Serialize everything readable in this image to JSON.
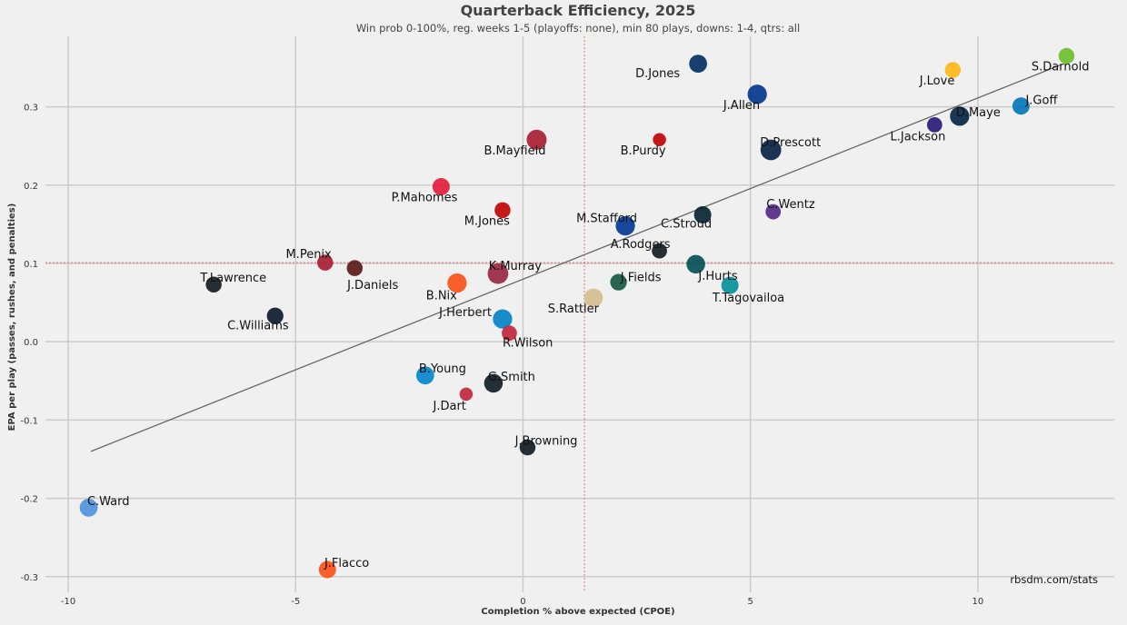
{
  "chart_data": {
    "type": "scatter",
    "title": "Quarterback Efficiency, 2025",
    "subtitle": "Win prob 0-100%, reg. weeks 1-5 (playoffs: none), min 80 plays, downs: 1-4, qtrs: all",
    "xlabel": "Completion % above expected (CPOE)",
    "ylabel": "EPA per play (passes, rushes, and penalties)",
    "credit": "rbsdm.com/stats",
    "xlim": [
      -10.5,
      13
    ],
    "ylim": [
      -0.32,
      0.39
    ],
    "xticks": [
      -10,
      -5,
      0,
      5,
      10
    ],
    "xtick_labels": [
      "-10",
      "-5",
      "0",
      "5",
      "10"
    ],
    "yticks": [
      -0.3,
      -0.2,
      -0.1,
      0.0,
      0.1,
      0.2,
      0.3
    ],
    "ytick_labels": [
      "-0.3",
      "-0.2",
      "-0.1",
      "0.0",
      "0.1",
      "0.2",
      "0.3"
    ],
    "grid": true,
    "mean_x": 1.35,
    "mean_y": 0.101,
    "trend_line": {
      "x": [
        -9.5,
        11.8
      ],
      "y": [
        -0.14,
        0.353
      ]
    },
    "points": [
      {
        "name": "S.Darnold",
        "x": 11.95,
        "y": 0.365,
        "size": 0.5,
        "color": "#69be28"
      },
      {
        "name": "J.Love",
        "x": 9.45,
        "y": 0.347,
        "size": 0.5,
        "color": "#ffb612"
      },
      {
        "name": "J.Goff",
        "x": 10.95,
        "y": 0.301,
        "size": 0.6,
        "color": "#0076b6"
      },
      {
        "name": "D.Maye",
        "x": 9.6,
        "y": 0.288,
        "size": 0.75,
        "color": "#002244"
      },
      {
        "name": "L.Jackson",
        "x": 9.05,
        "y": 0.277,
        "size": 0.45,
        "color": "#241773"
      },
      {
        "name": "D.Jones",
        "x": 3.85,
        "y": 0.355,
        "size": 0.65,
        "color": "#002c5f"
      },
      {
        "name": "J.Allen",
        "x": 5.15,
        "y": 0.316,
        "size": 0.75,
        "color": "#00338d"
      },
      {
        "name": "D.Prescott",
        "x": 5.45,
        "y": 0.245,
        "size": 0.85,
        "color": "#041e42"
      },
      {
        "name": "B.Purdy",
        "x": 3.0,
        "y": 0.258,
        "size": 0.3,
        "color": "#c00000"
      },
      {
        "name": "B.Mayfield",
        "x": 0.3,
        "y": 0.258,
        "size": 0.8,
        "color": "#a71930"
      },
      {
        "name": "P.Mahomes",
        "x": -1.8,
        "y": 0.198,
        "size": 0.6,
        "color": "#e31837"
      },
      {
        "name": "M.Jones",
        "x": -0.45,
        "y": 0.168,
        "size": 0.5,
        "color": "#c00000"
      },
      {
        "name": "C.Wentz",
        "x": 5.5,
        "y": 0.166,
        "size": 0.45,
        "color": "#4f2683"
      },
      {
        "name": "M.Stafford",
        "x": 2.25,
        "y": 0.148,
        "size": 0.75,
        "color": "#003594"
      },
      {
        "name": "C.Stroud",
        "x": 3.95,
        "y": 0.162,
        "size": 0.6,
        "color": "#03202f"
      },
      {
        "name": "A.Rodgers",
        "x": 3.0,
        "y": 0.116,
        "size": 0.45,
        "color": "#101820"
      },
      {
        "name": "M.Penix",
        "x": -4.35,
        "y": 0.101,
        "size": 0.5,
        "color": "#a71930"
      },
      {
        "name": "J.Daniels",
        "x": -3.7,
        "y": 0.094,
        "size": 0.5,
        "color": "#5a1414"
      },
      {
        "name": "K.Murray",
        "x": -0.55,
        "y": 0.087,
        "size": 0.85,
        "color": "#97233f"
      },
      {
        "name": "J.Hurts",
        "x": 3.8,
        "y": 0.099,
        "size": 0.7,
        "color": "#004c54"
      },
      {
        "name": "J.Fields",
        "x": 2.1,
        "y": 0.076,
        "size": 0.55,
        "color": "#125740"
      },
      {
        "name": "T.Tagovailoa",
        "x": 4.55,
        "y": 0.072,
        "size": 0.6,
        "color": "#008e97"
      },
      {
        "name": "T.Lawrence",
        "x": -6.8,
        "y": 0.073,
        "size": 0.5,
        "color": "#101820"
      },
      {
        "name": "B.Nix",
        "x": -1.45,
        "y": 0.075,
        "size": 0.75,
        "color": "#fb4f14"
      },
      {
        "name": "S.Rattler",
        "x": 1.55,
        "y": 0.056,
        "size": 0.7,
        "color": "#d3bc8d"
      },
      {
        "name": "C.Williams",
        "x": -5.45,
        "y": 0.033,
        "size": 0.55,
        "color": "#0b162a"
      },
      {
        "name": "J.Herbert",
        "x": -0.45,
        "y": 0.029,
        "size": 0.75,
        "color": "#0080c6"
      },
      {
        "name": "R.Wilson",
        "x": -0.3,
        "y": 0.011,
        "size": 0.45,
        "color": "#c0233a"
      },
      {
        "name": "B.Young",
        "x": -2.15,
        "y": -0.043,
        "size": 0.65,
        "color": "#0085ca"
      },
      {
        "name": "G.Smith",
        "x": -0.65,
        "y": -0.053,
        "size": 0.7,
        "color": "#101820"
      },
      {
        "name": "J.Dart",
        "x": -1.25,
        "y": -0.067,
        "size": 0.3,
        "color": "#c0233a"
      },
      {
        "name": "J.Browning",
        "x": 0.1,
        "y": -0.135,
        "size": 0.5,
        "color": "#101820"
      },
      {
        "name": "C.Ward",
        "x": -9.55,
        "y": -0.212,
        "size": 0.65,
        "color": "#4b92db"
      },
      {
        "name": "J.Flacco",
        "x": -4.3,
        "y": -0.291,
        "size": 0.6,
        "color": "#fb4f14"
      }
    ]
  }
}
